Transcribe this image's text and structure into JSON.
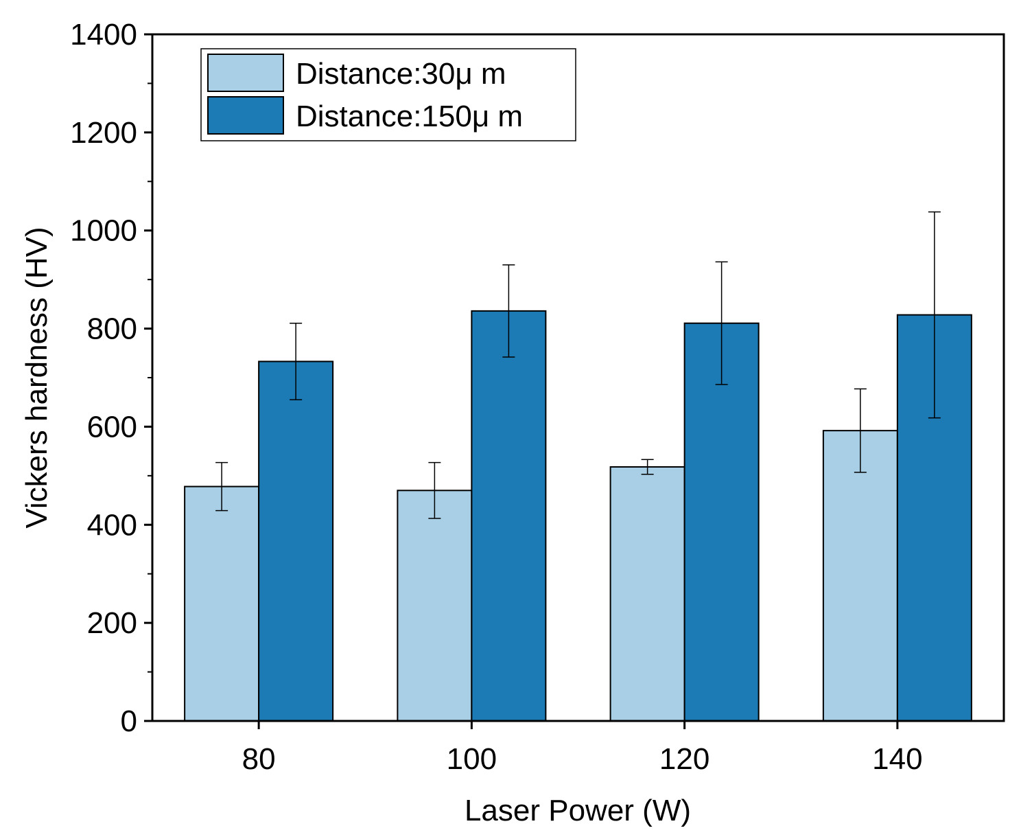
{
  "chart_data": {
    "type": "bar",
    "title": "",
    "xlabel": "Laser Power (W)",
    "ylabel": "Vickers hardness (HV)",
    "categories": [
      "80",
      "100",
      "120",
      "140"
    ],
    "ylim": [
      0,
      1400
    ],
    "yticks": [
      0,
      200,
      400,
      600,
      800,
      1000,
      1200,
      1400
    ],
    "grid": false,
    "legend_position": "top-left",
    "series": [
      {
        "name": "Distance:30μ m",
        "color": "#a8cfe6",
        "values": [
          478,
          470,
          518,
          592
        ],
        "errors": [
          49,
          57,
          15,
          85
        ]
      },
      {
        "name": "Distance:150μ m",
        "color": "#1c7ab5",
        "values": [
          733,
          836,
          811,
          828
        ],
        "errors": [
          78,
          94,
          125,
          210
        ]
      }
    ]
  }
}
